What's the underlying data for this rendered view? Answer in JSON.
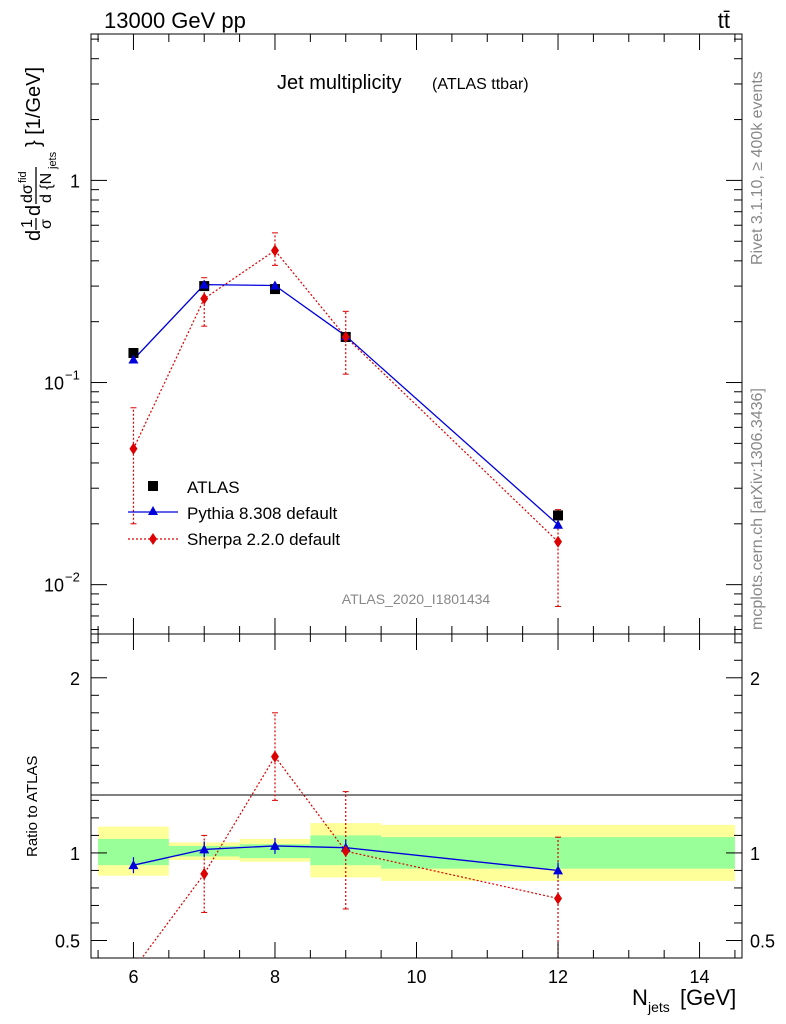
{
  "header": {
    "energy": "13000 GeV pp",
    "process": "tt̄"
  },
  "side_text": {
    "rivet": "Rivet 3.1.10, ≥ 400k events",
    "mcplots": "mcplots.cern.ch [arXiv:1306.3436]"
  },
  "chart_data": [
    {
      "type": "scatter",
      "title": "Jet multiplicity",
      "subtitle": "(ATLAS ttbar)",
      "watermark": "ATLAS_2020_I1801434",
      "xlabel": "N_jets [GeV]",
      "ylabel": "dσ/d{N_jets} · 1/σ [1/GeV]",
      "yscale": "log",
      "xlim": [
        5.4,
        14.6
      ],
      "ylim": [
        0.0057,
        5.3
      ],
      "yticks": [
        {
          "value": 0.01,
          "base": "10",
          "exp": "−2"
        },
        {
          "value": 0.1,
          "base": "10",
          "exp": "−1"
        },
        {
          "value": 1,
          "base": "1",
          "exp": ""
        }
      ],
      "legend": [
        "ATLAS",
        "Pythia 8.308 default",
        "Sherpa 2.2.0 default"
      ],
      "legend_position": "bottom-left",
      "series": [
        {
          "name": "ATLAS",
          "color": "#000000",
          "marker": "square",
          "x": [
            6,
            7,
            8,
            9,
            12
          ],
          "y": [
            0.14,
            0.3,
            0.29,
            0.168,
            0.022
          ]
        },
        {
          "name": "Pythia 8.308 default",
          "color": "#0000dd",
          "marker": "triangle",
          "x": [
            6,
            7,
            8,
            9,
            12
          ],
          "y": [
            0.13,
            0.305,
            0.302,
            0.17,
            0.0198
          ]
        },
        {
          "name": "Sherpa 2.2.0 default",
          "color": "#dd0000",
          "marker": "diamond",
          "x": [
            6,
            7,
            8,
            9,
            12
          ],
          "y": [
            0.047,
            0.26,
            0.45,
            0.168,
            0.0163
          ],
          "yerr_low": [
            0.02,
            0.19,
            0.38,
            0.11,
            0.0078
          ],
          "yerr_high": [
            0.075,
            0.33,
            0.55,
            0.225,
            0.0235
          ]
        }
      ]
    },
    {
      "type": "scatter",
      "ylabel": "Ratio to ATLAS",
      "xlabel": "N_jets [GeV]",
      "xlim": [
        5.4,
        14.6
      ],
      "ylim": [
        0.4,
        2.25
      ],
      "xticks": [
        6,
        8,
        10,
        12,
        14
      ],
      "yticks": [
        0.5,
        1,
        2
      ],
      "bands": {
        "edges": [
          5.5,
          6.5,
          7.5,
          8.5,
          9.5,
          14.5
        ],
        "yellow_low": [
          0.87,
          0.96,
          0.95,
          0.86,
          0.84
        ],
        "yellow_high": [
          1.15,
          1.06,
          1.08,
          1.17,
          1.16
        ],
        "green_low": [
          0.93,
          0.98,
          0.97,
          0.93,
          0.91
        ],
        "green_high": [
          1.08,
          1.04,
          1.05,
          1.1,
          1.09
        ]
      },
      "series": [
        {
          "name": "Pythia 8.308 default",
          "color": "#0000dd",
          "x": [
            6,
            7,
            8,
            9,
            12
          ],
          "y": [
            0.93,
            1.02,
            1.04,
            1.03,
            0.9
          ]
        },
        {
          "name": "Sherpa 2.2.0 default",
          "color": "#dd0000",
          "x": [
            6,
            7,
            8,
            9,
            12
          ],
          "y": [
            0.335,
            0.88,
            1.55,
            1.01,
            0.74
          ],
          "yerr_low": [
            0.3,
            0.66,
            1.3,
            0.68,
            0.4
          ],
          "yerr_high": [
            0.38,
            1.1,
            1.8,
            1.35,
            1.09
          ]
        }
      ]
    }
  ]
}
